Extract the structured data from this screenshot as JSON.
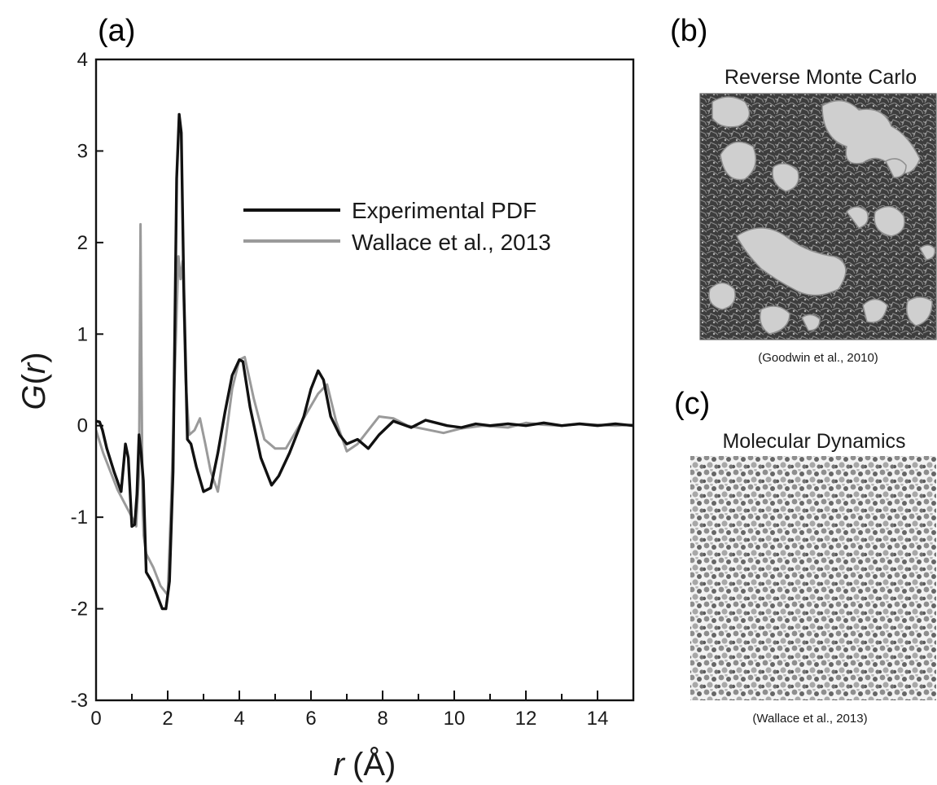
{
  "panel_a": {
    "label": "(a)"
  },
  "panel_b": {
    "label": "(b)",
    "title": "Reverse Monte Carlo",
    "credit": "(Goodwin et al., 2010)"
  },
  "panel_c": {
    "label": "(c)",
    "title": "Molecular Dynamics",
    "credit": "(Wallace et al., 2013)"
  },
  "colors": {
    "experimental": "#111111",
    "wallace": "#9a9a9a",
    "rmc_blob": "#cfcfcf",
    "md_dots": "#8c8c8c"
  },
  "chart_data": {
    "type": "line",
    "xlabel_italic": "r",
    "xlabel_unit": "(Å)",
    "ylabel_italic": "G",
    "ylabel_paren_open": "(",
    "ylabel_arg": "r",
    "ylabel_paren_close": ")",
    "xlim": [
      0,
      15
    ],
    "ylim": [
      -3,
      4
    ],
    "xticks": [
      0,
      2,
      4,
      6,
      8,
      10,
      12,
      14
    ],
    "xticks_minor": [
      1,
      3,
      5,
      7,
      9,
      11,
      13
    ],
    "yticks": [
      -3,
      -2,
      -1,
      0,
      1,
      2,
      3,
      4
    ],
    "legend_position": "upper-right",
    "series": [
      {
        "name": "Experimental PDF",
        "x": [
          0,
          0.1,
          0.18,
          0.3,
          0.5,
          0.7,
          0.82,
          0.9,
          1.0,
          1.08,
          1.14,
          1.2,
          1.26,
          1.32,
          1.4,
          1.55,
          1.7,
          1.85,
          1.95,
          2.05,
          2.15,
          2.25,
          2.32,
          2.38,
          2.45,
          2.55,
          2.65,
          2.8,
          3.0,
          3.2,
          3.4,
          3.6,
          3.8,
          4.0,
          4.1,
          4.3,
          4.6,
          4.9,
          5.1,
          5.4,
          5.6,
          5.8,
          6.0,
          6.2,
          6.35,
          6.55,
          6.8,
          7.0,
          7.3,
          7.6,
          7.9,
          8.3,
          8.8,
          9.2,
          9.5,
          9.8,
          10.2,
          10.6,
          11.0,
          11.5,
          12.0,
          12.5,
          13.0,
          13.5,
          14.0,
          14.5,
          15.0
        ],
        "values": [
          0.05,
          0.04,
          -0.05,
          -0.25,
          -0.5,
          -0.72,
          -0.2,
          -0.35,
          -1.1,
          -1.08,
          -0.75,
          -0.1,
          -0.3,
          -0.6,
          -1.6,
          -1.7,
          -1.85,
          -2.0,
          -2.0,
          -1.7,
          -0.5,
          2.7,
          3.4,
          3.2,
          1.5,
          -0.15,
          -0.2,
          -0.45,
          -0.72,
          -0.68,
          -0.3,
          0.15,
          0.55,
          0.72,
          0.7,
          0.2,
          -0.35,
          -0.65,
          -0.55,
          -0.3,
          -0.1,
          0.1,
          0.4,
          0.6,
          0.5,
          0.1,
          -0.1,
          -0.2,
          -0.15,
          -0.25,
          -0.1,
          0.05,
          -0.02,
          0.06,
          0.03,
          0.0,
          -0.02,
          0.02,
          0.0,
          0.02,
          0.0,
          0.03,
          0.0,
          0.02,
          0.0,
          0.02,
          0.0
        ]
      },
      {
        "name": "Wallace et al., 2013",
        "x": [
          0,
          0.2,
          0.4,
          0.6,
          0.8,
          1.0,
          1.12,
          1.2,
          1.24,
          1.27,
          1.3,
          1.33,
          1.4,
          1.6,
          1.8,
          2.0,
          2.1,
          2.2,
          2.3,
          2.36,
          2.42,
          2.5,
          2.6,
          2.75,
          2.9,
          3.05,
          3.2,
          3.4,
          3.6,
          3.8,
          4.0,
          4.15,
          4.4,
          4.7,
          5.0,
          5.3,
          5.6,
          5.9,
          6.2,
          6.45,
          6.7,
          7.0,
          7.3,
          7.6,
          7.9,
          8.3,
          8.7,
          9.2,
          9.7,
          10.2,
          10.8,
          11.5,
          12.0,
          12.5,
          13.0,
          13.5,
          14.0,
          14.5,
          15.0
        ],
        "values": [
          -0.05,
          -0.3,
          -0.5,
          -0.7,
          -0.85,
          -1.0,
          -1.1,
          -0.5,
          2.2,
          0.5,
          -0.9,
          -1.2,
          -1.4,
          -1.55,
          -1.75,
          -1.85,
          -0.8,
          0.6,
          1.85,
          1.6,
          1.8,
          0.5,
          -0.1,
          -0.05,
          0.08,
          -0.2,
          -0.5,
          -0.72,
          -0.2,
          0.4,
          0.72,
          0.75,
          0.3,
          -0.15,
          -0.25,
          -0.25,
          -0.05,
          0.15,
          0.35,
          0.45,
          0.05,
          -0.28,
          -0.2,
          -0.05,
          0.1,
          0.08,
          0.0,
          -0.04,
          -0.08,
          -0.03,
          0.0,
          -0.02,
          0.03,
          0.01,
          0.0,
          0.02,
          0.01,
          0.0,
          0.01
        ]
      }
    ]
  }
}
